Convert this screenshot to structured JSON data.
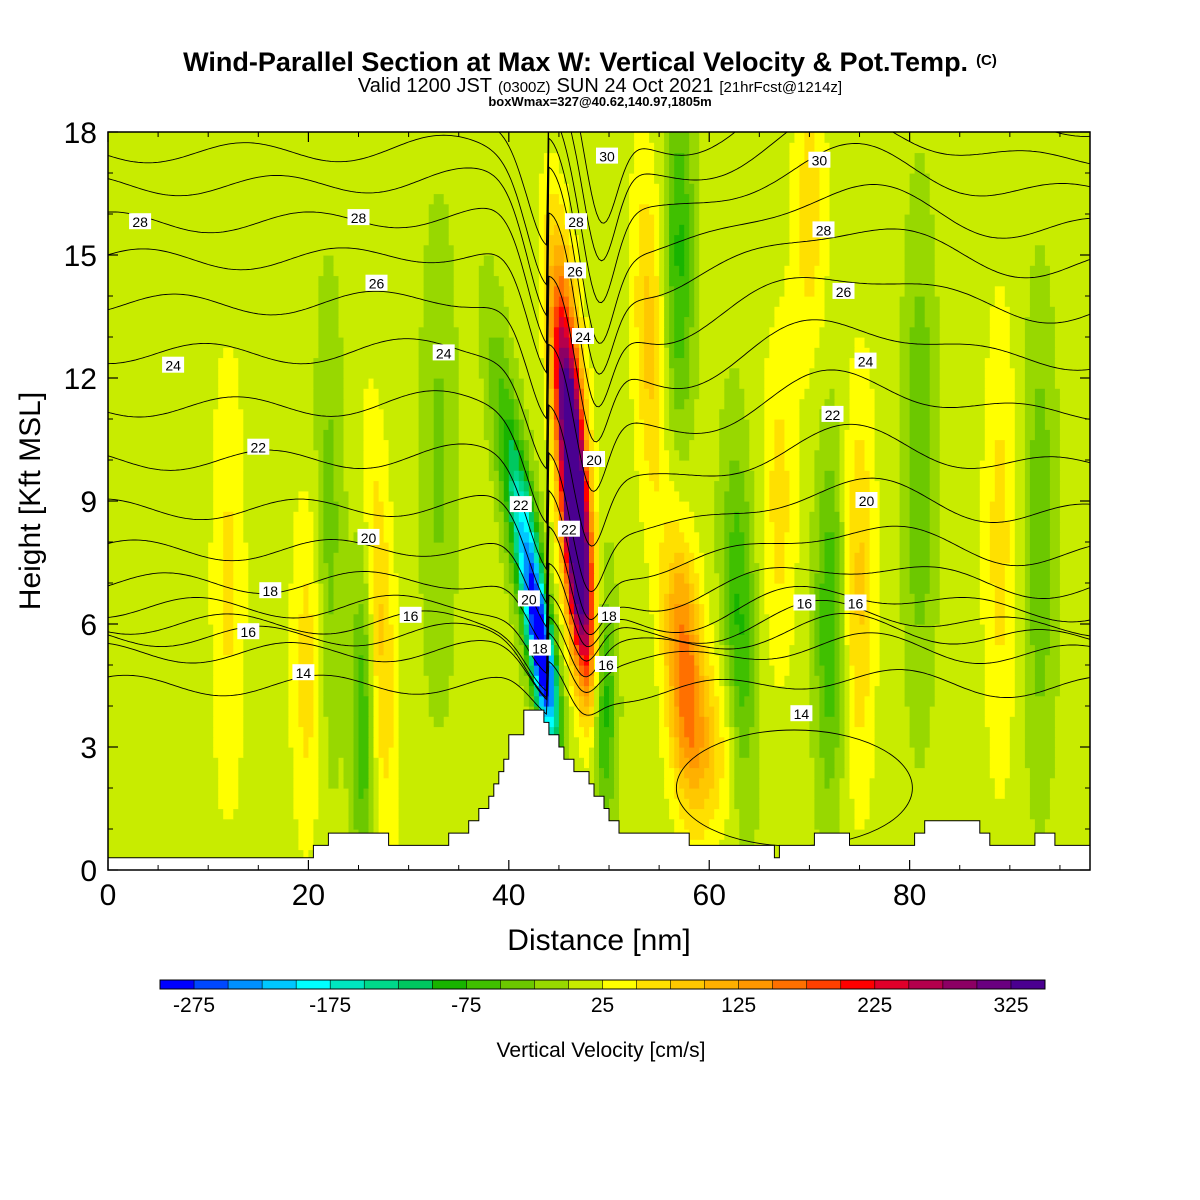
{
  "title": {
    "main": "Wind-Parallel Section at Max W: Vertical Velocity & Pot.Temp.",
    "main_mark": "(C)",
    "valid_a": "Valid 1200 JST",
    "valid_b": "(0300Z)",
    "valid_c": "SUN 24 Oct 2021",
    "valid_d": "[21hrFcst@1214z]",
    "box": "boxWmax=327@40.62,140.97,1805m"
  },
  "chart_data": {
    "type": "heatmap",
    "xlabel": "Distance [nm]",
    "ylabel": "Height [Kft MSL]",
    "xlim": [
      0,
      98
    ],
    "ylim": [
      0,
      18
    ],
    "x_ticks": [
      0,
      20,
      40,
      60,
      80
    ],
    "y_ticks": [
      0,
      3,
      6,
      9,
      12,
      15,
      18
    ],
    "colorbar": {
      "label": "Vertical Velocity [cm/s]",
      "min": -300,
      "max": 350,
      "step": 25,
      "tick_labels": [
        "-275",
        "-175",
        "-75",
        "25",
        "125",
        "225",
        "325"
      ],
      "colors": [
        "#0000ff",
        "#0048ff",
        "#0090ff",
        "#00c8ff",
        "#00ffff",
        "#00e6c0",
        "#00d88a",
        "#00c860",
        "#18b400",
        "#40c000",
        "#6cc800",
        "#98d800",
        "#c8ec00",
        "#ffff00",
        "#ffe000",
        "#ffc800",
        "#ffb000",
        "#ff9800",
        "#ff7000",
        "#ff4000",
        "#ff0000",
        "#e0002a",
        "#b4004c",
        "#8c0064",
        "#6a0080",
        "#4a0090"
      ]
    },
    "terrain": [
      [
        0,
        0.3
      ],
      [
        20,
        0.3
      ],
      [
        21,
        0.6
      ],
      [
        23,
        1.0
      ],
      [
        27,
        1.0
      ],
      [
        28,
        0.6
      ],
      [
        33,
        0.6
      ],
      [
        35,
        0.9
      ],
      [
        36,
        1.1
      ],
      [
        37,
        1.4
      ],
      [
        38,
        1.8
      ],
      [
        39,
        2.4
      ],
      [
        40,
        3.2
      ],
      [
        41,
        3.4
      ],
      [
        41.5,
        3.8
      ],
      [
        43,
        3.8
      ],
      [
        43.6,
        3.5
      ],
      [
        44.6,
        3.2
      ],
      [
        45.5,
        2.8
      ],
      [
        46.4,
        2.5
      ],
      [
        47.4,
        2.3
      ],
      [
        48.4,
        1.9
      ],
      [
        49.4,
        1.6
      ],
      [
        50,
        1.3
      ],
      [
        50.6,
        1.0
      ],
      [
        57,
        1.0
      ],
      [
        58,
        0.7
      ],
      [
        63,
        0.7
      ],
      [
        66,
        0.5
      ],
      [
        66.5,
        0.3
      ],
      [
        67,
        0.5
      ],
      [
        70,
        0.7
      ],
      [
        71,
        1.0
      ],
      [
        73,
        1.0
      ],
      [
        74,
        0.7
      ],
      [
        80,
        0.7
      ],
      [
        81,
        1.0
      ],
      [
        82,
        1.3
      ],
      [
        86,
        1.3
      ],
      [
        87,
        1.0
      ],
      [
        88,
        0.7
      ],
      [
        92,
        0.7
      ],
      [
        92.5,
        1.0
      ],
      [
        94,
        1.0
      ],
      [
        94.6,
        0.7
      ],
      [
        98,
        0.7
      ]
    ],
    "w_features": [
      {
        "x": 46.5,
        "z": 9.5,
        "w": 327,
        "sx": 0.9,
        "sz": 2.8,
        "tilt": -0.32
      },
      {
        "x": 46.8,
        "z": 7.0,
        "w": 180,
        "sx": 0.9,
        "sz": 2.0,
        "tilt": -0.3
      },
      {
        "x": 46.0,
        "z": 12.0,
        "w": 120,
        "sx": 1.1,
        "sz": 2.5,
        "tilt": -0.3
      },
      {
        "x": 43.5,
        "z": 5.0,
        "w": -300,
        "sx": 0.8,
        "sz": 1.4,
        "tilt": -0.45
      },
      {
        "x": 42.0,
        "z": 7.5,
        "w": -180,
        "sx": 0.9,
        "sz": 1.8,
        "tilt": -0.45
      },
      {
        "x": 40.0,
        "z": 10.0,
        "w": -75,
        "sx": 1.0,
        "sz": 2.5,
        "tilt": -0.45
      },
      {
        "x": 49.5,
        "z": 4.0,
        "w": -110,
        "sx": 0.8,
        "sz": 2.0,
        "tilt": 0.0
      },
      {
        "x": 57.5,
        "z": 5.0,
        "w": 150,
        "sx": 1.3,
        "sz": 2.2,
        "tilt": -0.2
      },
      {
        "x": 54.0,
        "z": 13.0,
        "w": 75,
        "sx": 1.1,
        "sz": 3.0,
        "tilt": -0.1
      },
      {
        "x": 57.0,
        "z": 15.0,
        "w": -90,
        "sx": 1.0,
        "sz": 3.0,
        "tilt": 0.0
      },
      {
        "x": 27.0,
        "z": 6.0,
        "w": 75,
        "sx": 1.1,
        "sz": 3.5,
        "tilt": -0.15
      },
      {
        "x": 25.5,
        "z": 4.0,
        "w": -90,
        "sx": 0.8,
        "sz": 3.0,
        "tilt": 0.0
      },
      {
        "x": 22.0,
        "z": 8.0,
        "w": -50,
        "sx": 1.0,
        "sz": 4.0,
        "tilt": 0.0
      },
      {
        "x": 33.0,
        "z": 10.0,
        "w": -40,
        "sx": 1.2,
        "sz": 4.0,
        "tilt": 0.0
      },
      {
        "x": 20.0,
        "z": 5.0,
        "w": 55,
        "sx": 1.2,
        "sz": 3.0,
        "tilt": 0.0
      },
      {
        "x": 12.0,
        "z": 7.0,
        "w": 45,
        "sx": 1.2,
        "sz": 4.0,
        "tilt": 0.0
      },
      {
        "x": 63.0,
        "z": 6.0,
        "w": -90,
        "sx": 1.1,
        "sz": 3.0,
        "tilt": -0.1
      },
      {
        "x": 67.0,
        "z": 9.0,
        "w": 50,
        "sx": 1.2,
        "sz": 3.0,
        "tilt": 0.0
      },
      {
        "x": 72.0,
        "z": 6.0,
        "w": -85,
        "sx": 1.0,
        "sz": 3.0,
        "tilt": 0.0
      },
      {
        "x": 75.0,
        "z": 7.0,
        "w": 70,
        "sx": 1.1,
        "sz": 3.5,
        "tilt": 0.0
      },
      {
        "x": 81.0,
        "z": 10.0,
        "w": -60,
        "sx": 1.1,
        "sz": 4.0,
        "tilt": 0.0
      },
      {
        "x": 89.0,
        "z": 8.0,
        "w": 50,
        "sx": 1.2,
        "sz": 4.0,
        "tilt": 0.0
      },
      {
        "x": 93.0,
        "z": 8.0,
        "w": -55,
        "sx": 1.1,
        "sz": 4.0,
        "tilt": 0.0
      },
      {
        "x": 70.0,
        "z": 16.0,
        "w": 55,
        "sx": 1.2,
        "sz": 2.5,
        "tilt": 0.0
      },
      {
        "x": 60.0,
        "z": 3.0,
        "w": 60,
        "sx": 2.0,
        "sz": 1.5,
        "tilt": 0.0
      }
    ],
    "theta_levels": [
      14,
      15,
      16,
      17,
      18,
      19,
      20,
      21,
      22,
      23,
      24,
      25,
      26,
      27,
      28,
      29,
      30
    ],
    "theta_labels": [
      {
        "x": 3.2,
        "z": 15.8,
        "text": "28"
      },
      {
        "x": 25.0,
        "z": 15.9,
        "text": "28"
      },
      {
        "x": 26.8,
        "z": 14.3,
        "text": "26"
      },
      {
        "x": 6.5,
        "z": 12.3,
        "text": "24"
      },
      {
        "x": 33.5,
        "z": 12.6,
        "text": "24"
      },
      {
        "x": 15.0,
        "z": 10.3,
        "text": "22"
      },
      {
        "x": 26.0,
        "z": 8.1,
        "text": "20"
      },
      {
        "x": 16.2,
        "z": 6.8,
        "text": "18"
      },
      {
        "x": 14.0,
        "z": 5.8,
        "text": "16"
      },
      {
        "x": 30.2,
        "z": 6.2,
        "text": "16"
      },
      {
        "x": 19.5,
        "z": 4.8,
        "text": "14"
      },
      {
        "x": 41.2,
        "z": 8.9,
        "text": "22"
      },
      {
        "x": 46.0,
        "z": 8.3,
        "text": "22"
      },
      {
        "x": 42.0,
        "z": 6.6,
        "text": "20"
      },
      {
        "x": 43.1,
        "z": 5.4,
        "text": "18"
      },
      {
        "x": 50.0,
        "z": 6.2,
        "text": "18"
      },
      {
        "x": 49.7,
        "z": 5.0,
        "text": "16"
      },
      {
        "x": 48.5,
        "z": 10.0,
        "text": "20"
      },
      {
        "x": 47.4,
        "z": 13.0,
        "text": "24"
      },
      {
        "x": 46.6,
        "z": 14.6,
        "text": "26"
      },
      {
        "x": 46.7,
        "z": 15.8,
        "text": "28"
      },
      {
        "x": 49.8,
        "z": 17.4,
        "text": "30"
      },
      {
        "x": 71.0,
        "z": 17.3,
        "text": "30"
      },
      {
        "x": 71.4,
        "z": 15.6,
        "text": "28"
      },
      {
        "x": 73.4,
        "z": 14.1,
        "text": "26"
      },
      {
        "x": 75.6,
        "z": 12.4,
        "text": "24"
      },
      {
        "x": 72.3,
        "z": 11.1,
        "text": "22"
      },
      {
        "x": 75.7,
        "z": 9.0,
        "text": "20"
      },
      {
        "x": 69.5,
        "z": 6.5,
        "text": "16"
      },
      {
        "x": 74.6,
        "z": 6.5,
        "text": "16"
      },
      {
        "x": 69.2,
        "z": 3.8,
        "text": "14"
      }
    ]
  }
}
